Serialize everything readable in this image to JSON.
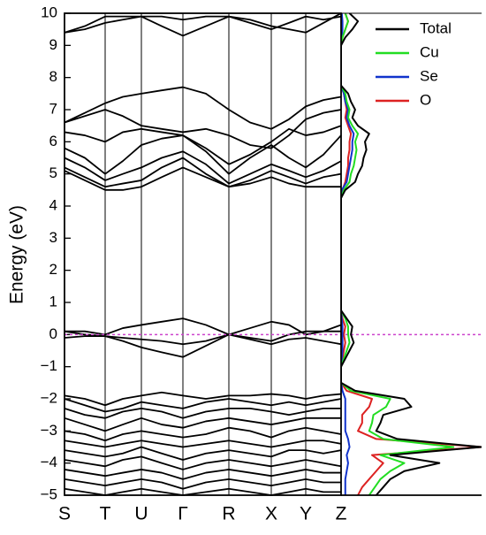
{
  "chart_data": [
    {
      "type": "band",
      "ylabel": "Energy (eV)",
      "xlim": [
        0,
        313
      ],
      "ylim": [
        -5,
        10
      ],
      "xticks": [
        {
          "value": 0,
          "label": "S"
        },
        {
          "value": 46,
          "label": "T"
        },
        {
          "value": 87,
          "label": "U"
        },
        {
          "value": 134,
          "label": "Γ"
        },
        {
          "value": 186,
          "label": "R"
        },
        {
          "value": 234,
          "label": "X"
        },
        {
          "value": 273,
          "label": "Y"
        },
        {
          "value": 313,
          "label": "Z"
        }
      ],
      "yticks": [
        {
          "value": -5,
          "label": "−5"
        },
        {
          "value": -4,
          "label": "−4"
        },
        {
          "value": -3,
          "label": "−3"
        },
        {
          "value": -2,
          "label": "−2"
        },
        {
          "value": -1,
          "label": "−1"
        },
        0,
        1,
        2,
        3,
        4,
        5,
        6,
        7,
        8,
        9,
        10
      ],
      "reference_line": {
        "value": 0,
        "color": "#cc44cc",
        "dashed": true
      },
      "x": [
        0,
        23,
        46,
        66,
        87,
        110,
        134,
        160,
        186,
        210,
        234,
        254,
        273,
        293,
        313
      ],
      "series": [
        {
          "color": "#000000",
          "values": [
            9.4,
            9.5,
            9.7,
            9.8,
            9.9,
            9.6,
            9.3,
            9.6,
            9.9,
            9.7,
            9.5,
            9.7,
            9.9,
            9.8,
            9.9
          ]
        },
        {
          "color": "#000000",
          "values": [
            9.4,
            9.6,
            9.9,
            9.9,
            9.9,
            9.9,
            9.8,
            9.9,
            9.9,
            9.8,
            9.6,
            9.5,
            9.4,
            9.7,
            10.0
          ]
        },
        {
          "color": "#000000",
          "values": [
            6.6,
            6.9,
            7.2,
            7.4,
            7.5,
            7.6,
            7.7,
            7.5,
            7.0,
            6.6,
            6.4,
            6.7,
            7.1,
            7.3,
            7.4
          ]
        },
        {
          "color": "#000000",
          "values": [
            6.6,
            6.8,
            7.0,
            6.8,
            6.5,
            6.4,
            6.3,
            6.4,
            6.2,
            5.9,
            5.8,
            6.2,
            6.7,
            6.9,
            7.0
          ]
        },
        {
          "color": "#000000",
          "values": [
            6.3,
            6.2,
            6.0,
            6.3,
            6.4,
            6.3,
            6.2,
            5.8,
            5.3,
            5.6,
            6.0,
            6.4,
            6.2,
            6.3,
            6.5
          ]
        },
        {
          "color": "#000000",
          "values": [
            5.8,
            5.5,
            5.0,
            5.4,
            5.9,
            6.1,
            6.2,
            5.7,
            5.0,
            5.5,
            5.9,
            5.5,
            5.2,
            5.6,
            6.2
          ]
        },
        {
          "color": "#000000",
          "values": [
            5.5,
            5.2,
            4.8,
            5.0,
            5.2,
            5.5,
            5.7,
            5.3,
            4.7,
            5.0,
            5.3,
            5.1,
            4.9,
            5.1,
            5.4
          ]
        },
        {
          "color": "#000000",
          "values": [
            5.2,
            4.9,
            4.6,
            4.7,
            4.8,
            5.2,
            5.5,
            5.0,
            4.6,
            4.8,
            5.1,
            4.9,
            4.7,
            4.9,
            5.0
          ]
        },
        {
          "color": "#000000",
          "values": [
            5.1,
            4.8,
            4.5,
            4.5,
            4.6,
            4.9,
            5.2,
            4.9,
            4.6,
            4.7,
            4.9,
            4.7,
            4.6,
            4.6,
            4.6
          ]
        },
        {
          "color": "#000000",
          "values": [
            0.1,
            0.1,
            0.0,
            0.2,
            0.3,
            0.4,
            0.5,
            0.3,
            0.0,
            0.2,
            0.4,
            0.3,
            0.0,
            0.1,
            0.3
          ]
        },
        {
          "color": "#000000",
          "values": [
            0.1,
            0.0,
            -0.05,
            -0.1,
            -0.15,
            -0.2,
            -0.3,
            -0.2,
            0.0,
            -0.1,
            -0.2,
            0.0,
            0.1,
            0.1,
            0.1
          ]
        },
        {
          "color": "#000000",
          "values": [
            -0.1,
            -0.05,
            -0.05,
            -0.2,
            -0.4,
            -0.55,
            -0.7,
            -0.35,
            0.0,
            -0.15,
            -0.3,
            -0.15,
            -0.1,
            -0.2,
            -0.3
          ]
        },
        {
          "color": "#000000",
          "values": [
            -1.9,
            -2.0,
            -2.2,
            -2.0,
            -1.9,
            -1.8,
            -1.9,
            -2.0,
            -1.9,
            -1.9,
            -1.85,
            -1.9,
            -2.0,
            -1.9,
            -1.85
          ]
        },
        {
          "color": "#000000",
          "values": [
            -2.0,
            -2.2,
            -2.4,
            -2.3,
            -2.1,
            -2.2,
            -2.3,
            -2.1,
            -2.0,
            -2.1,
            -2.2,
            -2.1,
            -2.2,
            -2.1,
            -2.0
          ]
        },
        {
          "color": "#000000",
          "values": [
            -2.3,
            -2.5,
            -2.6,
            -2.4,
            -2.3,
            -2.4,
            -2.6,
            -2.4,
            -2.3,
            -2.3,
            -2.4,
            -2.5,
            -2.4,
            -2.3,
            -2.3
          ]
        },
        {
          "color": "#000000",
          "values": [
            -2.6,
            -2.8,
            -3.0,
            -2.8,
            -2.6,
            -2.8,
            -2.9,
            -2.7,
            -2.6,
            -2.7,
            -2.8,
            -2.7,
            -2.6,
            -2.6,
            -2.6
          ]
        },
        {
          "color": "#000000",
          "values": [
            -3.0,
            -3.1,
            -3.3,
            -3.1,
            -3.0,
            -3.1,
            -3.2,
            -3.1,
            -2.9,
            -3.0,
            -3.2,
            -3.0,
            -2.9,
            -3.0,
            -3.1
          ]
        },
        {
          "color": "#000000",
          "values": [
            -3.3,
            -3.4,
            -3.5,
            -3.4,
            -3.3,
            -3.4,
            -3.5,
            -3.4,
            -3.3,
            -3.4,
            -3.5,
            -3.4,
            -3.3,
            -3.3,
            -3.4
          ]
        },
        {
          "color": "#000000",
          "values": [
            -3.6,
            -3.7,
            -3.8,
            -3.7,
            -3.5,
            -3.7,
            -3.9,
            -3.7,
            -3.6,
            -3.7,
            -3.8,
            -3.6,
            -3.6,
            -3.7,
            -3.6
          ]
        },
        {
          "color": "#000000",
          "values": [
            -3.9,
            -4.0,
            -4.1,
            -3.9,
            -3.8,
            -4.0,
            -4.2,
            -4.0,
            -3.9,
            -4.0,
            -4.1,
            -4.0,
            -3.9,
            -4.0,
            -4.1
          ]
        },
        {
          "color": "#000000",
          "values": [
            -4.2,
            -4.3,
            -4.4,
            -4.3,
            -4.2,
            -4.3,
            -4.5,
            -4.3,
            -4.2,
            -4.3,
            -4.4,
            -4.3,
            -4.2,
            -4.3,
            -4.3
          ]
        },
        {
          "color": "#000000",
          "values": [
            -4.5,
            -4.6,
            -4.7,
            -4.6,
            -4.5,
            -4.6,
            -4.8,
            -4.6,
            -4.5,
            -4.6,
            -4.7,
            -4.6,
            -4.5,
            -4.6,
            -4.6
          ]
        },
        {
          "color": "#000000",
          "values": [
            -4.8,
            -4.9,
            -5.0,
            -4.9,
            -4.8,
            -4.9,
            -5.0,
            -4.9,
            -4.8,
            -4.9,
            -5.0,
            -4.9,
            -4.8,
            -4.9,
            -4.9
          ]
        }
      ]
    },
    {
      "type": "dos",
      "xlim": [
        0,
        10
      ],
      "ylim": [
        -5,
        10
      ],
      "legend": "upper right",
      "y": [
        -5,
        -4.75,
        -4.5,
        -4.25,
        -4,
        -3.75,
        -3.5,
        -3.25,
        -3,
        -2.75,
        -2.5,
        -2.25,
        -2,
        -1.75,
        -1.5,
        -1.25,
        -1,
        -0.75,
        -0.5,
        -0.25,
        0,
        0.25,
        0.5,
        0.75,
        1,
        1.25,
        1.5,
        1.75,
        2,
        2.25,
        2.5,
        2.75,
        3,
        3.25,
        3.5,
        3.75,
        4,
        4.25,
        4.5,
        4.75,
        5,
        5.25,
        5.5,
        5.75,
        6,
        6.25,
        6.5,
        6.75,
        7,
        7.25,
        7.5,
        7.75,
        8,
        8.25,
        8.5,
        8.75,
        9,
        9.25,
        9.5,
        9.75,
        10
      ],
      "series": [
        {
          "name": "Total",
          "color": "#000000",
          "values": [
            2.5,
            3.0,
            3.5,
            4.5,
            7.0,
            3.5,
            10,
            4.0,
            2.5,
            2.8,
            3.0,
            5.0,
            4.5,
            1.0,
            0,
            0,
            0,
            0.3,
            0.6,
            0.9,
            0.7,
            0.8,
            0.4,
            0,
            0,
            0,
            0,
            0,
            0,
            0,
            0,
            0,
            0,
            0,
            0,
            0,
            0,
            0,
            0.3,
            1.0,
            1.2,
            1.5,
            1.6,
            1.8,
            1.7,
            2.0,
            1.2,
            0.8,
            1.0,
            0.7,
            0.5,
            0,
            0,
            0,
            0,
            0,
            0,
            0.3,
            0.8,
            1.2,
            0.6
          ]
        },
        {
          "name": "Cu",
          "color": "#22dd22",
          "values": [
            2.0,
            2.4,
            2.8,
            3.5,
            4.5,
            2.8,
            8.0,
            3.0,
            2.0,
            2.2,
            2.3,
            3.2,
            3.5,
            0.7,
            0,
            0,
            0,
            0.2,
            0.4,
            0.6,
            0.5,
            0.5,
            0.3,
            0,
            0,
            0,
            0,
            0,
            0,
            0,
            0,
            0,
            0,
            0,
            0,
            0,
            0,
            0,
            0.2,
            0.6,
            0.7,
            0.9,
            1.0,
            1.1,
            1.0,
            1.2,
            0.8,
            0.5,
            0.6,
            0.4,
            0.3,
            0,
            0,
            0,
            0,
            0,
            0,
            0.1,
            0.3,
            0.5,
            0.3
          ]
        },
        {
          "name": "Se",
          "color": "#1133cc",
          "values": [
            0.3,
            0.3,
            0.3,
            0.4,
            0.5,
            0.4,
            0.6,
            0.5,
            0.3,
            0.3,
            0.3,
            0.3,
            0.3,
            0.1,
            0,
            0,
            0,
            0.05,
            0.1,
            0.1,
            0.1,
            0.1,
            0.05,
            0,
            0,
            0,
            0,
            0,
            0,
            0,
            0,
            0,
            0,
            0,
            0,
            0,
            0,
            0,
            0.05,
            0.4,
            0.5,
            0.6,
            0.7,
            0.8,
            0.8,
            0.9,
            0.6,
            0.4,
            0.5,
            0.3,
            0.2,
            0,
            0,
            0,
            0,
            0,
            0,
            0.05,
            0.1,
            0.1,
            0.05
          ]
        },
        {
          "name": "O",
          "color": "#dd2222",
          "values": [
            1.2,
            1.5,
            2.0,
            2.5,
            3.0,
            2.2,
            10,
            2.5,
            1.2,
            1.5,
            1.5,
            2.0,
            2.2,
            0.4,
            0,
            0,
            0,
            0.1,
            0.2,
            0.3,
            0.2,
            0.3,
            0.1,
            0,
            0,
            0,
            0,
            0,
            0,
            0,
            0,
            0,
            0,
            0,
            0,
            0,
            0,
            0,
            0.1,
            0.3,
            0.4,
            0.5,
            0.5,
            0.6,
            0.6,
            0.7,
            0.5,
            0.3,
            0.4,
            0.3,
            0.2,
            0,
            0,
            0,
            0,
            0,
            0,
            0.1,
            0.3,
            0.5,
            0.3
          ]
        }
      ]
    }
  ]
}
